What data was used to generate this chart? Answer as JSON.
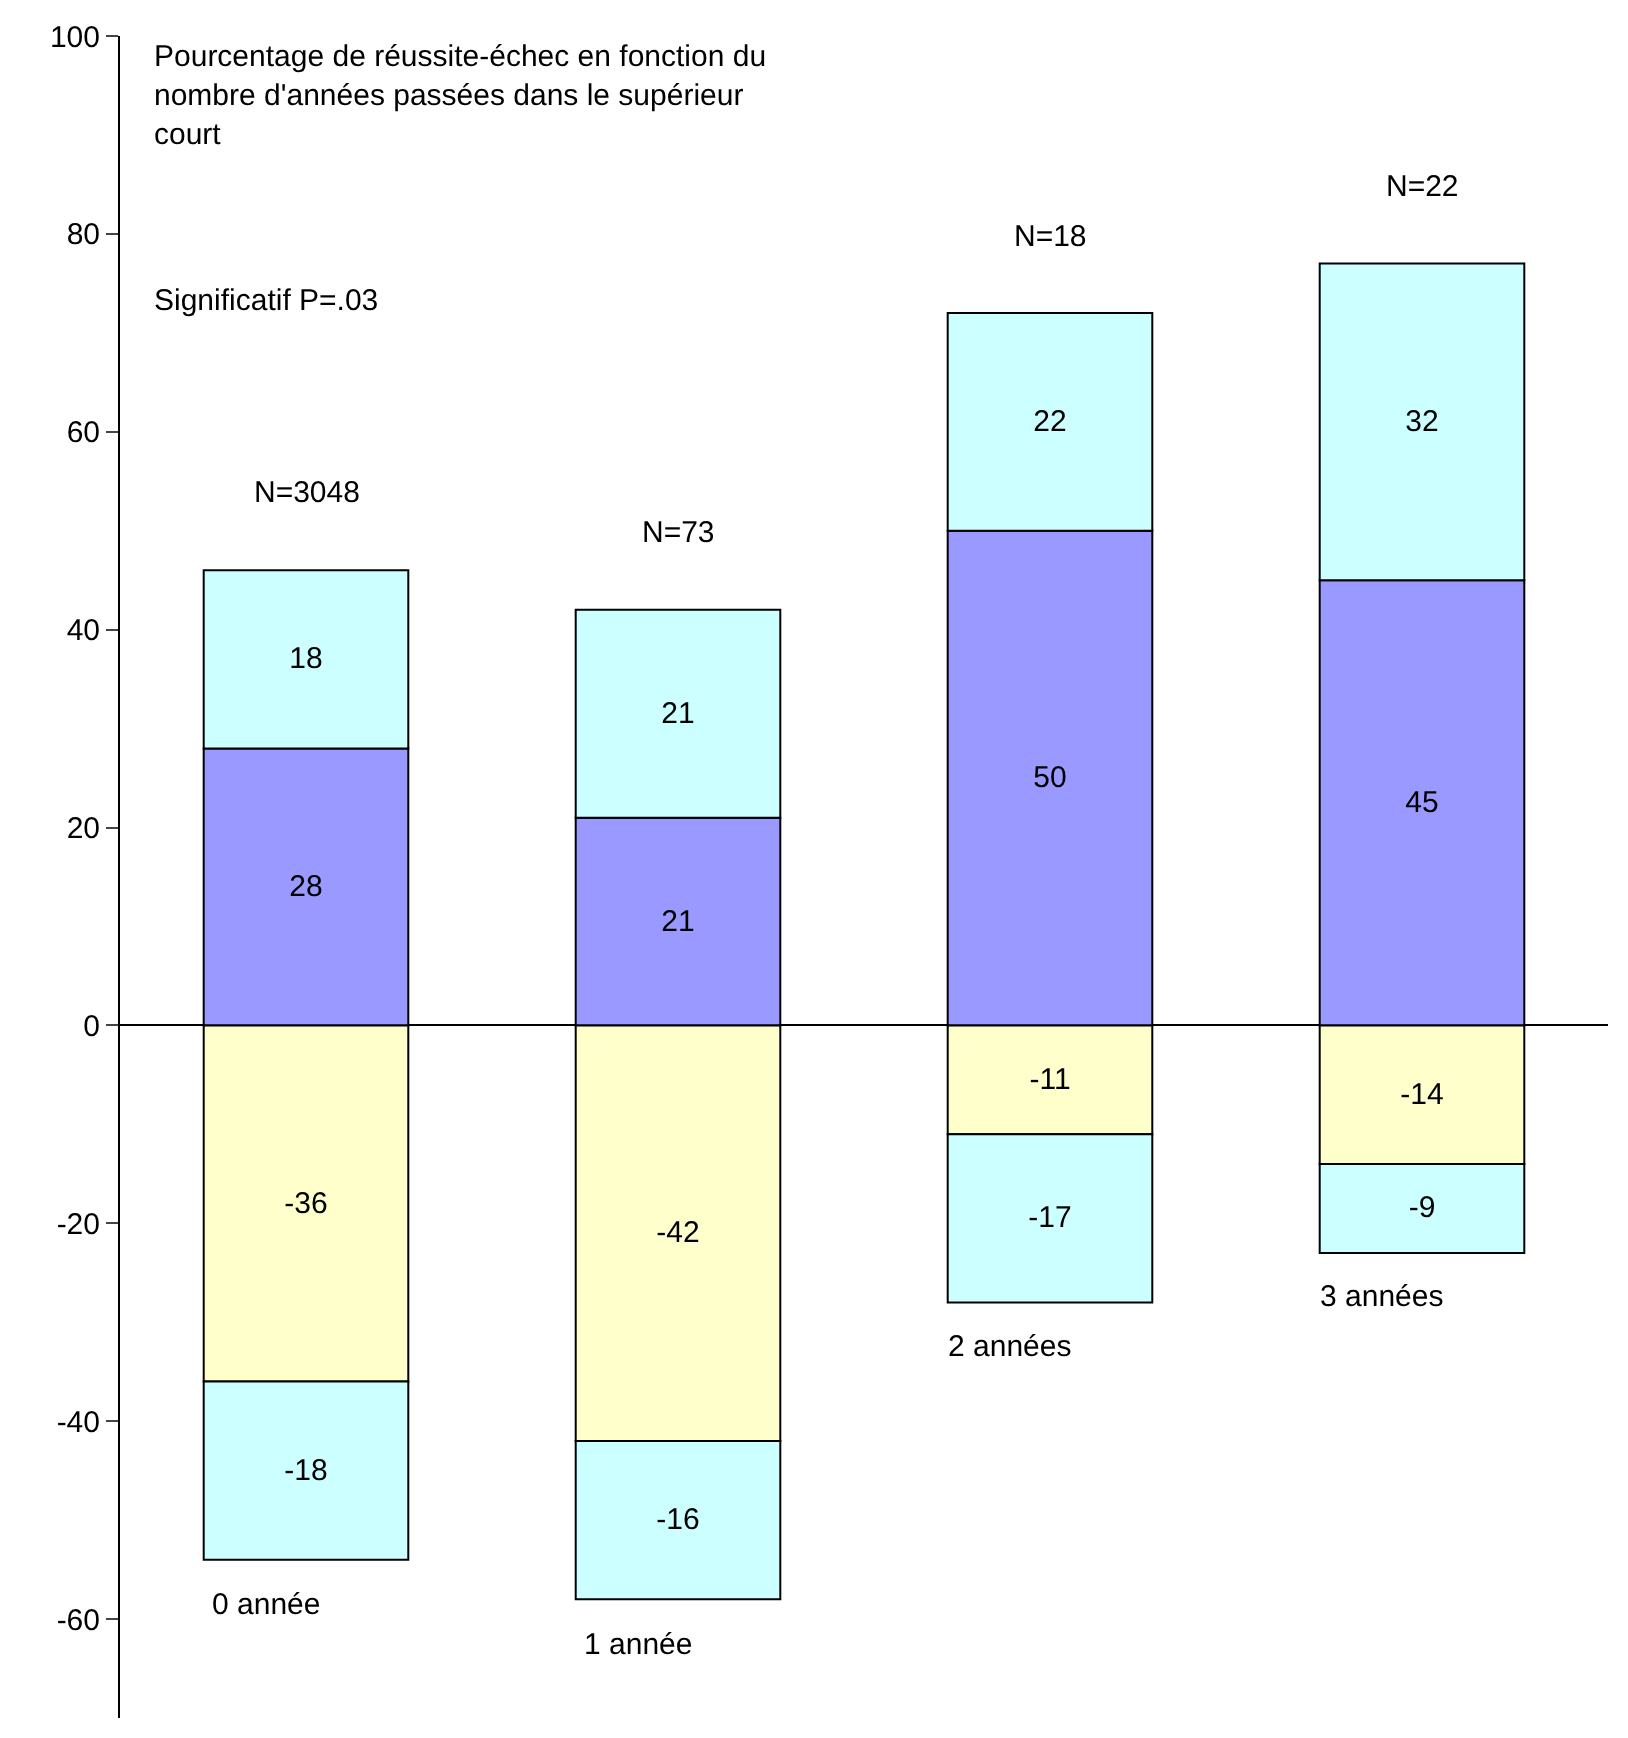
{
  "chart_data": {
    "type": "bar",
    "stacked": true,
    "title": "Pourcentage de réussite-échec en fonction du nombre d'années passées dans le supérieur court",
    "categories": [
      "0 année",
      "1 année",
      "2 années",
      "3 années"
    ],
    "series": [
      {
        "color": "#9999ff",
        "values": [
          28,
          21,
          50,
          45
        ]
      },
      {
        "color": "#ccffff",
        "values": [
          18,
          21,
          22,
          32
        ]
      },
      {
        "color": "#ffffcc",
        "values": [
          -36,
          -42,
          -11,
          -14
        ]
      },
      {
        "color": "#ccffff",
        "values": [
          -18,
          -16,
          -17,
          -9
        ]
      }
    ],
    "data_labels": true,
    "ylim": [
      -70,
      100
    ],
    "yticks": [
      -60,
      -40,
      -20,
      0,
      20,
      40,
      60,
      80,
      100
    ],
    "annotations": [
      "Significatif P=.03",
      "N=3048",
      "N=73",
      "N=18",
      "N=22"
    ]
  }
}
